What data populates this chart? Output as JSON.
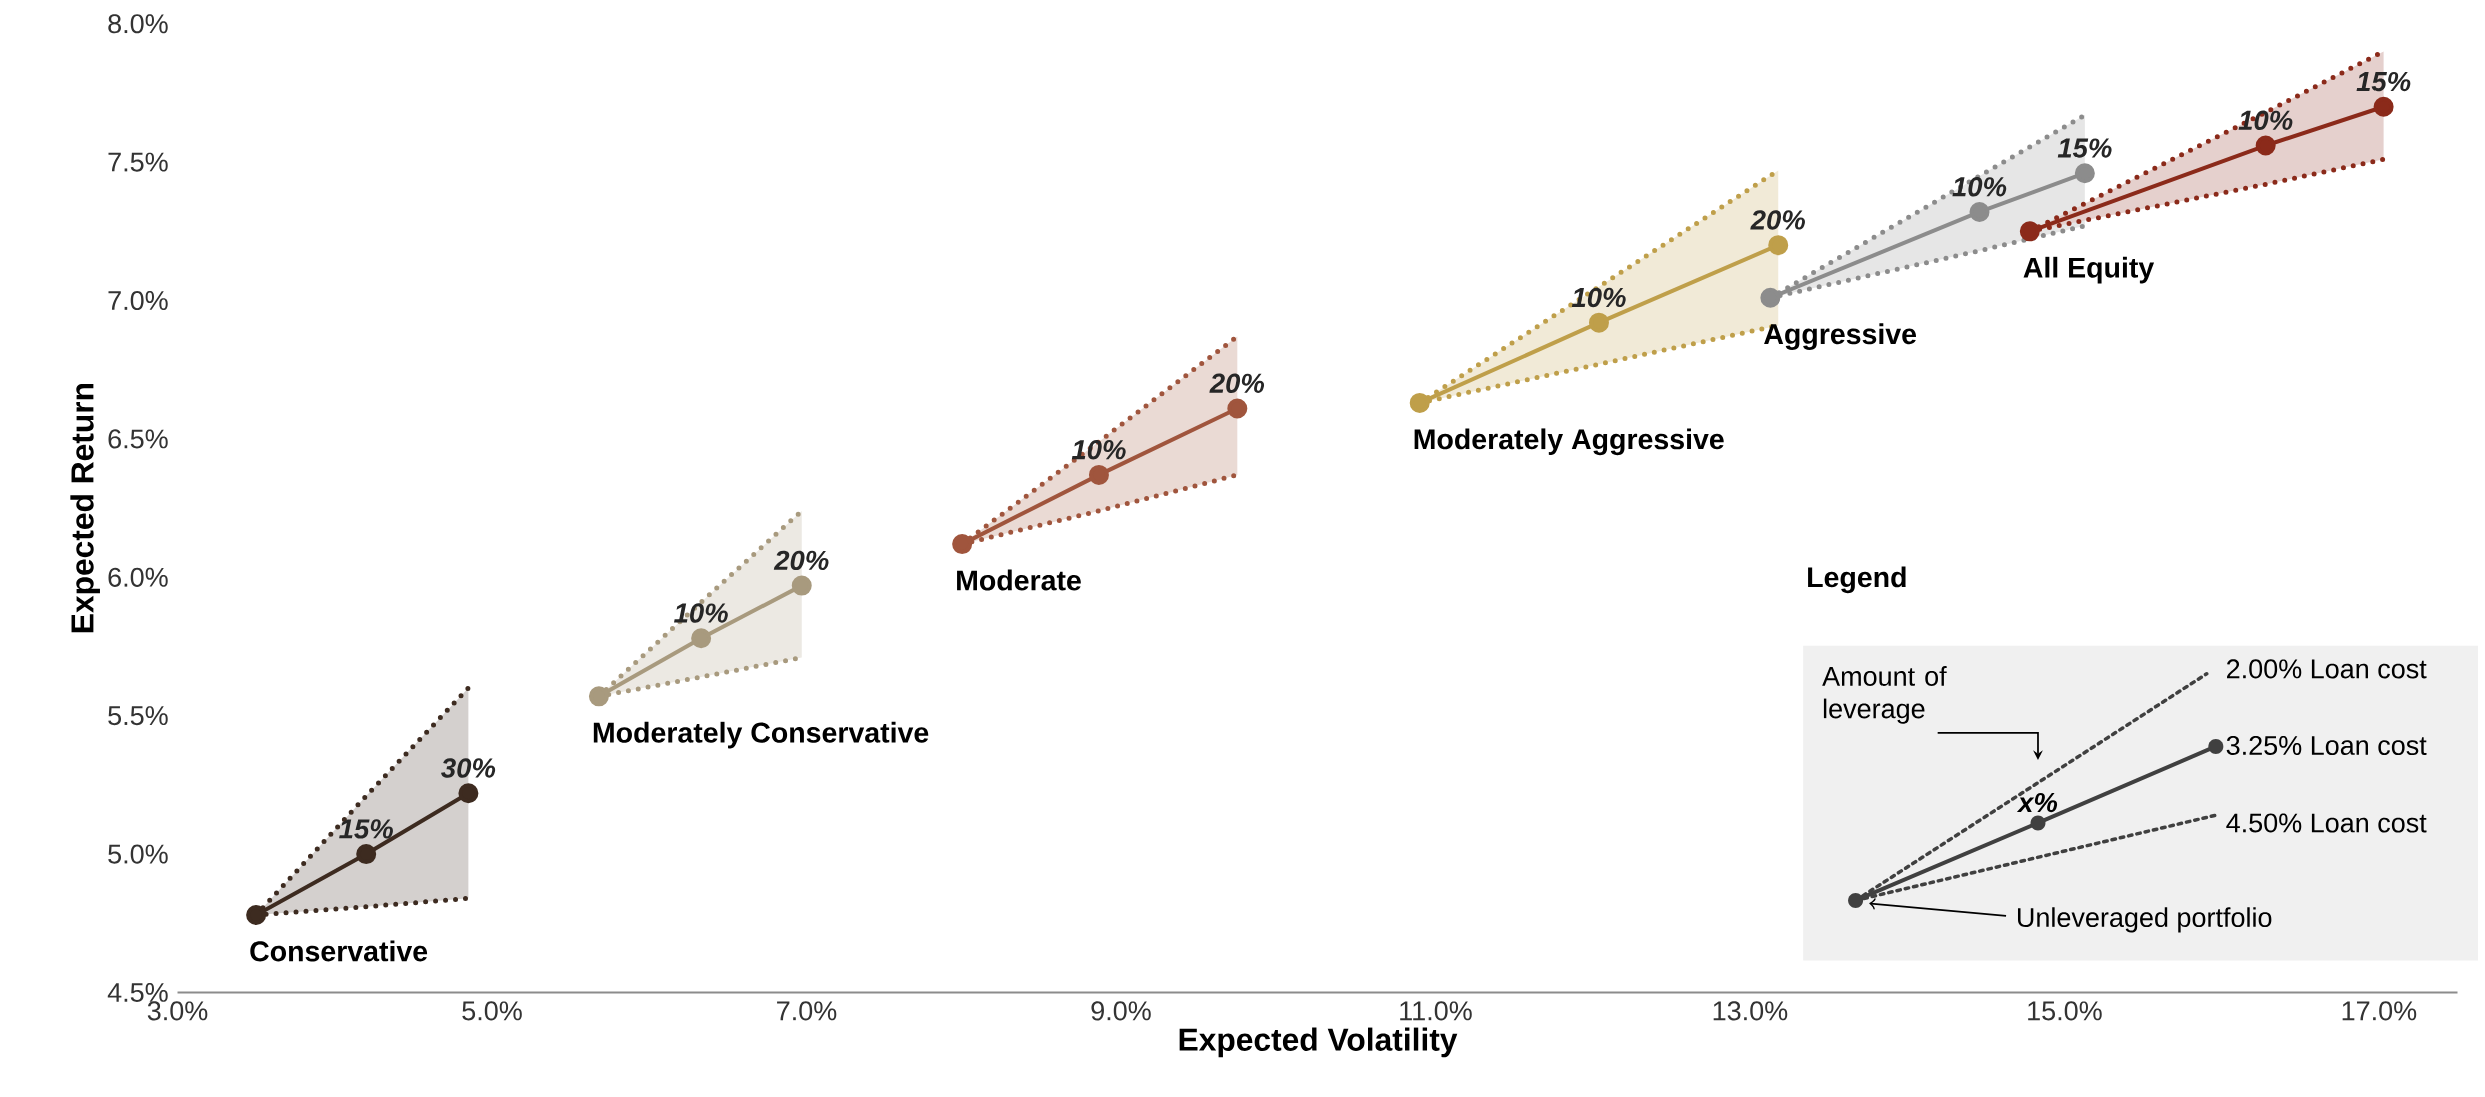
{
  "chart_data": {
    "type": "line",
    "xlabel": "Expected Volatility",
    "ylabel": "Expected Return",
    "xlim": [
      3.0,
      17.5
    ],
    "ylim": [
      4.5,
      8.0
    ],
    "xticks": [
      {
        "value": 3,
        "label": "3.0%"
      },
      {
        "value": 5,
        "label": "5.0%"
      },
      {
        "value": 7,
        "label": "7.0%"
      },
      {
        "value": 9,
        "label": "9.0%"
      },
      {
        "value": 11,
        "label": "11.0%"
      },
      {
        "value": 13,
        "label": "13.0%"
      },
      {
        "value": 15,
        "label": "15.0%"
      },
      {
        "value": 17,
        "label": "17.0%"
      }
    ],
    "yticks": [
      {
        "value": 4.5,
        "label": "4.5%"
      },
      {
        "value": 5.0,
        "label": "5.0%"
      },
      {
        "value": 5.5,
        "label": "5.5%"
      },
      {
        "value": 6.0,
        "label": "6.0%"
      },
      {
        "value": 6.5,
        "label": "6.5%"
      },
      {
        "value": 7.0,
        "label": "7.0%"
      },
      {
        "value": 7.5,
        "label": "7.5%"
      },
      {
        "value": 8.0,
        "label": "8.0%"
      }
    ],
    "marker": "circle",
    "line_style": "solid",
    "series": [
      {
        "name": "Conservative",
        "color": "#3d2b20",
        "x": [
          3.5,
          4.2,
          4.85
        ],
        "values": [
          4.78,
          5.0,
          5.22
        ],
        "upper": [
          4.78,
          5.21,
          5.6
        ],
        "lower": [
          4.78,
          4.81,
          4.84
        ]
      },
      {
        "name": "Moderately Conservative",
        "color": "#a89a7e",
        "x": [
          5.68,
          6.33,
          6.97
        ],
        "values": [
          5.57,
          5.78,
          5.97
        ],
        "upper": [
          5.57,
          5.91,
          6.24
        ],
        "lower": [
          5.57,
          5.64,
          5.71
        ]
      },
      {
        "name": "Moderate",
        "color": "#a0553d",
        "x": [
          7.99,
          8.86,
          9.74
        ],
        "values": [
          6.12,
          6.37,
          6.61
        ],
        "upper": [
          6.12,
          6.49,
          6.87
        ],
        "lower": [
          6.12,
          6.24,
          6.37
        ]
      },
      {
        "name": "Moderately Aggressive",
        "color": "#bf9f4a",
        "x": [
          10.9,
          12.04,
          13.18
        ],
        "values": [
          6.63,
          6.92,
          7.2
        ],
        "upper": [
          6.63,
          7.05,
          7.47
        ],
        "lower": [
          6.63,
          6.77,
          6.91
        ]
      },
      {
        "name": "Aggressive",
        "color": "#8c8c8c",
        "x": [
          13.13,
          14.46,
          15.13
        ],
        "values": [
          7.01,
          7.32,
          7.46
        ],
        "upper": [
          7.01,
          7.45,
          7.67
        ],
        "lower": [
          7.01,
          7.18,
          7.27
        ]
      },
      {
        "name": "All Equity",
        "color": "#8b2a1a",
        "x": [
          14.78,
          16.28,
          17.03
        ],
        "values": [
          7.25,
          7.56,
          7.7
        ],
        "upper": [
          7.25,
          7.68,
          7.9
        ],
        "lower": [
          7.25,
          7.42,
          7.51
        ]
      }
    ],
    "annotations": [
      "Legend",
      "Amount of leverage",
      "x%",
      "2.00% Loan cost",
      "3.25% Loan cost",
      "4.50% Loan cost",
      "Unleveraged portfolio",
      {
        "text": "15%",
        "x": 4.2,
        "y": 5.0
      },
      {
        "text": "30%",
        "x": 4.85,
        "y": 5.22
      },
      {
        "text": "10%",
        "x": 6.33,
        "y": 5.78
      },
      {
        "text": "20%",
        "x": 6.97,
        "y": 5.97
      },
      {
        "text": "10%",
        "x": 8.86,
        "y": 6.37
      },
      {
        "text": "20%",
        "x": 9.74,
        "y": 6.61
      },
      {
        "text": "10%",
        "x": 12.04,
        "y": 6.92
      },
      {
        "text": "20%",
        "x": 13.18,
        "y": 7.2
      },
      {
        "text": "10%",
        "x": 14.46,
        "y": 7.32
      },
      {
        "text": "15%",
        "x": 15.13,
        "y": 7.46
      },
      {
        "text": "10%",
        "x": 16.28,
        "y": 7.56
      },
      {
        "text": "15%",
        "x": 17.03,
        "y": 7.7
      }
    ]
  }
}
